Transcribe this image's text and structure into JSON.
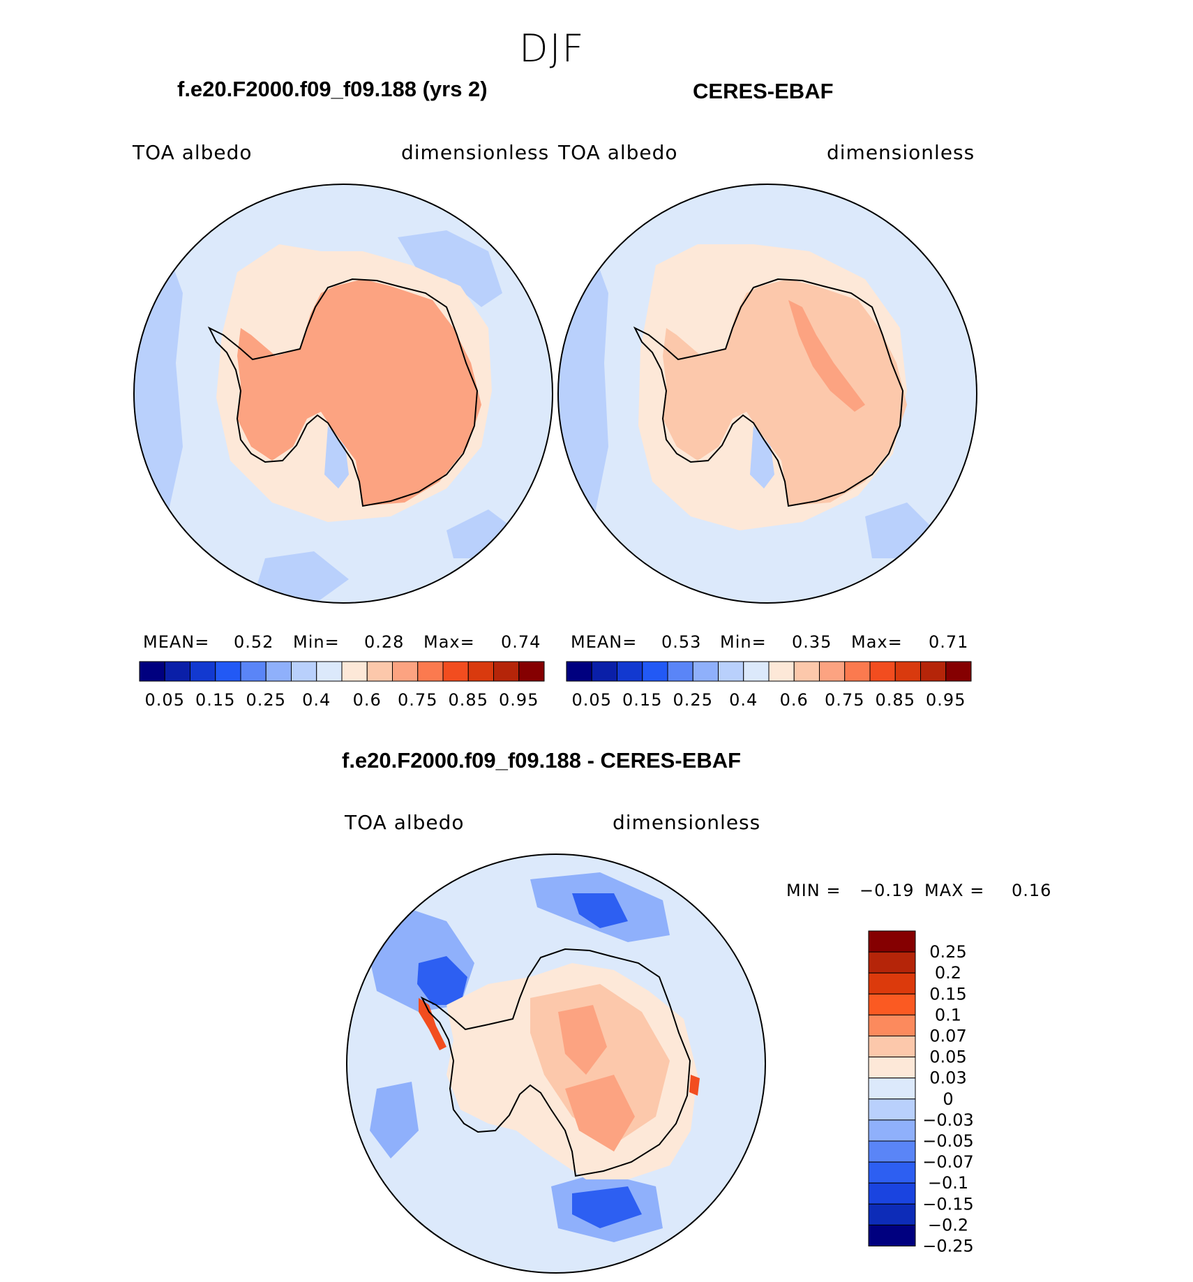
{
  "figure": {
    "title": "DJF",
    "panels": [
      {
        "title": "f.e20.F2000.f09_f09.188 (yrs 2)",
        "left_label": "TOA  albedo",
        "right_label": "dimensionless",
        "stats": {
          "mean_label": "MEAN=",
          "mean": "0.52",
          "min_label": "Min=",
          "min": "0.28",
          "max_label": "Max=",
          "max": "0.74"
        }
      },
      {
        "title": "CERES-EBAF",
        "left_label": "TOA  albedo",
        "right_label": "dimensionless",
        "stats": {
          "mean_label": "MEAN=",
          "mean": "0.53",
          "min_label": "Min=",
          "min": "0.35",
          "max_label": "Max=",
          "max": "0.71"
        }
      }
    ],
    "colorbar": {
      "labels": [
        "0.05",
        "0.15",
        "0.25",
        "0.4",
        "0.6",
        "0.75",
        "0.85",
        "0.95"
      ],
      "colors": [
        "#00007f",
        "#0a1fa8",
        "#1239d0",
        "#2259f5",
        "#5a85f7",
        "#8fb0fb",
        "#b9d0fc",
        "#dce9fb",
        "#fde8d8",
        "#fcc8ab",
        "#fca381",
        "#fb7a4f",
        "#f24d1f",
        "#d93a0e",
        "#b52509",
        "#850001"
      ]
    },
    "diff": {
      "title": "f.e20.F2000.f09_f09.188 - CERES-EBAF",
      "left_label": "TOA  albedo",
      "right_label": "dimensionless",
      "stats": {
        "min_label": "MIN =",
        "min": "−0.19",
        "max_label": "MAX =",
        "max": "0.16"
      },
      "colorbar": {
        "labels": [
          "0.25",
          "0.2",
          "0.15",
          "0.1",
          "0.07",
          "0.05",
          "0.03",
          "0",
          "−0.03",
          "−0.05",
          "−0.07",
          "−0.1",
          "−0.15",
          "−0.2",
          "−0.25"
        ],
        "colors": [
          "#850001",
          "#b52509",
          "#dc3a0c",
          "#fb5a22",
          "#fc8a5d",
          "#fcc8ab",
          "#fde8d8",
          "#dce9fb",
          "#b9d0fc",
          "#8fb0fb",
          "#5a85f7",
          "#2d5ff2",
          "#1a44e0",
          "#0d2cb8",
          "#00007f"
        ]
      }
    },
    "map_colors": {
      "ocean_bg": "#dce9fb",
      "ocean_low": "#b9d0fc",
      "sea_ice": "#fde8d8",
      "shelf": "#fcc8ab",
      "land_model": "#fca381",
      "land_obs": "#fcc8ab",
      "ridge_obs": "#fca381",
      "diff_bg": "#dce9fb",
      "diff_neg": "#8fb0fb",
      "diff_neg_strong": "#2d5ff2",
      "diff_land": "#fde8d8",
      "diff_land_pos": "#fcc8ab",
      "diff_land_pos_strong": "#fca381",
      "diff_edge": "#f24d1f"
    }
  }
}
